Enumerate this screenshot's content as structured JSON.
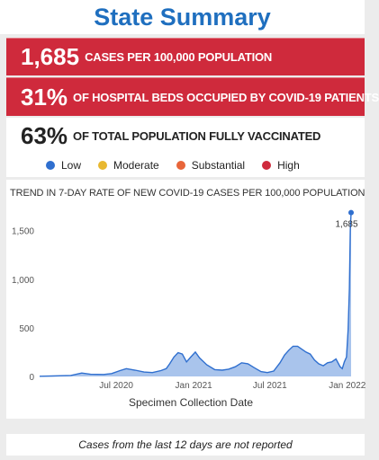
{
  "title": "State Summary",
  "cards": [
    {
      "value": "1,685",
      "label": "CASES PER 100,000 POPULATION"
    },
    {
      "value": "31%",
      "label": "OF HOSPITAL BEDS OCCUPIED BY COVID-19 PATIENTS"
    },
    {
      "value": "63%",
      "label": "OF TOTAL POPULATION FULLY VACCINATED"
    }
  ],
  "legend": [
    {
      "label": "Low",
      "color": "#2f6fcf"
    },
    {
      "label": "Moderate",
      "color": "#e8b830"
    },
    {
      "label": "Substantial",
      "color": "#e8653a"
    },
    {
      "label": "High",
      "color": "#cf2a3c"
    }
  ],
  "footer": "Cases from the last 12 days are not reported",
  "chart_data": {
    "type": "area",
    "title": "TREND IN 7-DAY RATE OF NEW COVID-19 CASES PER 100,000 POPULATION",
    "xlabel": "Specimen Collection Date",
    "ylabel": "",
    "ylim": [
      0,
      1700
    ],
    "yticks": [
      0,
      500,
      1000,
      1500
    ],
    "ytick_labels": [
      "0",
      "500",
      "1,000",
      "1,500"
    ],
    "xticks": [
      "2020-07-01",
      "2021-01-01",
      "2021-07-01",
      "2022-01-01"
    ],
    "xtick_labels": [
      "Jul 2020",
      "Jan 2021",
      "Jul 2021",
      "Jan 2022"
    ],
    "xlim": [
      "2020-01-01",
      "2022-01-10"
    ],
    "grid": false,
    "fill_color": "#a9c4ec",
    "line_color": "#2f6fcf",
    "annotation": {
      "x": "2022-01-10",
      "y": 1685,
      "label": "1,685"
    },
    "x": [
      "2020-01-01",
      "2020-02-01",
      "2020-03-15",
      "2020-04-10",
      "2020-05-01",
      "2020-06-01",
      "2020-06-20",
      "2020-07-10",
      "2020-07-25",
      "2020-08-15",
      "2020-09-05",
      "2020-09-25",
      "2020-10-15",
      "2020-10-28",
      "2020-11-05",
      "2020-11-15",
      "2020-11-25",
      "2020-12-05",
      "2020-12-15",
      "2020-12-25",
      "2021-01-05",
      "2021-01-15",
      "2021-02-01",
      "2021-02-20",
      "2021-03-10",
      "2021-03-25",
      "2021-04-10",
      "2021-04-25",
      "2021-05-10",
      "2021-05-25",
      "2021-06-10",
      "2021-06-25",
      "2021-07-10",
      "2021-07-25",
      "2021-08-05",
      "2021-08-15",
      "2021-08-25",
      "2021-09-05",
      "2021-09-15",
      "2021-09-25",
      "2021-10-05",
      "2021-10-15",
      "2021-10-25",
      "2021-11-05",
      "2021-11-15",
      "2021-11-25",
      "2021-12-05",
      "2021-12-15",
      "2021-12-20",
      "2021-12-25",
      "2021-12-30",
      "2022-01-03",
      "2022-01-06",
      "2022-01-08",
      "2022-01-10"
    ],
    "y": [
      2,
      5,
      10,
      35,
      22,
      20,
      30,
      60,
      80,
      65,
      45,
      40,
      60,
      80,
      130,
      200,
      245,
      230,
      150,
      200,
      250,
      190,
      120,
      70,
      65,
      75,
      100,
      140,
      130,
      90,
      50,
      40,
      55,
      140,
      220,
      270,
      310,
      310,
      280,
      250,
      230,
      170,
      130,
      110,
      140,
      150,
      180,
      100,
      80,
      150,
      200,
      480,
      900,
      1500,
      1685
    ]
  }
}
